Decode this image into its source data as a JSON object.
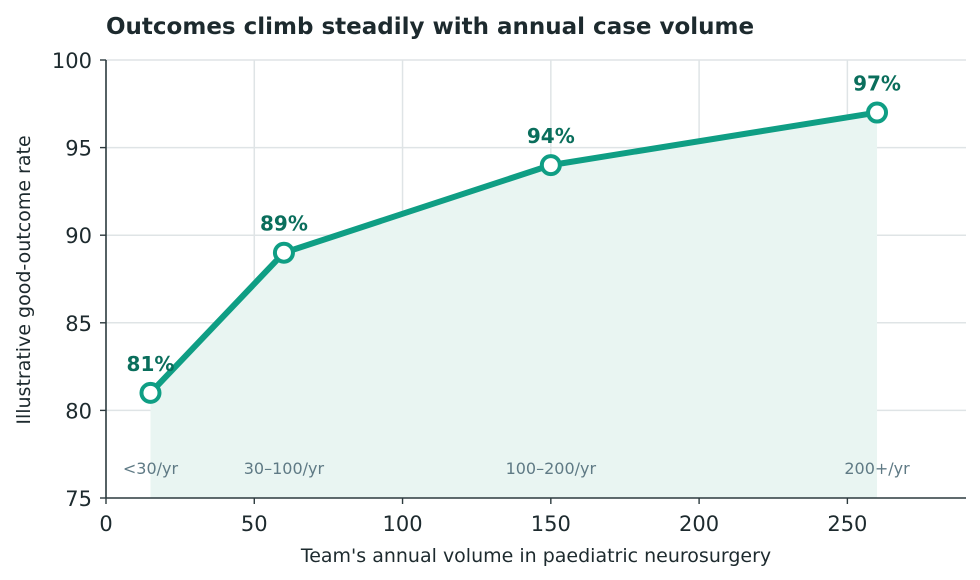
{
  "chart_data": {
    "type": "line",
    "title": "Outcomes climb steadily with annual case volume",
    "xlabel": "Team's annual volume in paediatric neurosurgery",
    "ylabel": "Illustrative good-outcome rate",
    "xlim": [
      0,
      290
    ],
    "ylim": [
      75,
      100
    ],
    "xticks": [
      0,
      50,
      100,
      150,
      200,
      250
    ],
    "yticks": [
      75,
      80,
      85,
      90,
      95,
      100
    ],
    "grid": true,
    "area_fill": true,
    "points": [
      {
        "x": 15,
        "y": 81,
        "label": "81%",
        "category": "<30/yr"
      },
      {
        "x": 60,
        "y": 89,
        "label": "89%",
        "category": "30–100/yr"
      },
      {
        "x": 150,
        "y": 94,
        "label": "94%",
        "category": "100–200/yr"
      },
      {
        "x": 260,
        "y": 97,
        "label": "97%",
        "category": "200+/yr"
      }
    ],
    "colors": {
      "line": "#0f9e84",
      "label": "#0a6e5c",
      "fill": "#e9f5f2",
      "grid": "#dfe4e6",
      "axis": "#2c3a3e",
      "category_text": "#5f7a85"
    }
  }
}
